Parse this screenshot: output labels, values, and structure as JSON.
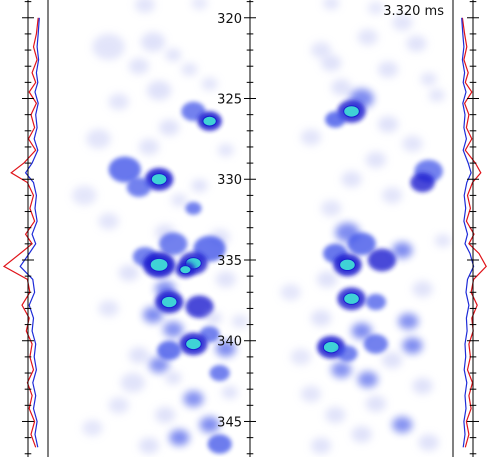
{
  "chart_data": {
    "type": "heatmap",
    "time_label": "3.320 ms",
    "axis": {
      "ylim": [
        318.9,
        347.2
      ],
      "major_ticks": [
        320,
        325,
        330,
        335,
        340,
        345
      ],
      "minor_step": 1,
      "tick_labels": [
        "320",
        "325",
        "330",
        "335",
        "340",
        "345"
      ]
    },
    "colors": {
      "blob_light": "#c9cdf6",
      "blob_mid": "#3b4fe8",
      "blob_dark": "#1a1fcf",
      "blob_hot": "#3fd2d6",
      "profile_red": "#e0141a",
      "profile_blue": "#1e2bd8",
      "axis": "#000000"
    },
    "profiles": {
      "left": {
        "red": [
          [
            320.0,
            0.05
          ],
          [
            321.0,
            0.1
          ],
          [
            321.8,
            0.18
          ],
          [
            322.6,
            0.08
          ],
          [
            323.4,
            0.22
          ],
          [
            324.0,
            0.12
          ],
          [
            324.6,
            0.3
          ],
          [
            325.3,
            0.1
          ],
          [
            326.0,
            0.25
          ],
          [
            326.8,
            0.15
          ],
          [
            327.5,
            0.32
          ],
          [
            328.2,
            0.12
          ],
          [
            329.0,
            0.45
          ],
          [
            329.6,
            0.8
          ],
          [
            330.2,
            0.35
          ],
          [
            331.0,
            0.18
          ],
          [
            331.8,
            0.28
          ],
          [
            332.6,
            0.15
          ],
          [
            333.4,
            0.4
          ],
          [
            334.0,
            0.22
          ],
          [
            334.6,
            0.55
          ],
          [
            335.4,
            1.0
          ],
          [
            336.2,
            0.35
          ],
          [
            337.0,
            0.28
          ],
          [
            337.8,
            0.5
          ],
          [
            338.6,
            0.3
          ],
          [
            339.4,
            0.38
          ],
          [
            340.2,
            0.22
          ],
          [
            341.0,
            0.28
          ],
          [
            341.8,
            0.18
          ],
          [
            342.6,
            0.35
          ],
          [
            343.4,
            0.22
          ],
          [
            344.2,
            0.3
          ],
          [
            345.0,
            0.15
          ],
          [
            345.8,
            0.25
          ],
          [
            346.6,
            0.12
          ]
        ],
        "blue": [
          [
            320.0,
            0.02
          ],
          [
            321.0,
            0.05
          ],
          [
            321.8,
            0.08
          ],
          [
            322.6,
            0.04
          ],
          [
            323.4,
            0.1
          ],
          [
            324.0,
            0.06
          ],
          [
            324.6,
            0.14
          ],
          [
            325.3,
            0.05
          ],
          [
            326.0,
            0.12
          ],
          [
            326.8,
            0.08
          ],
          [
            327.5,
            0.16
          ],
          [
            328.2,
            0.06
          ],
          [
            329.0,
            0.22
          ],
          [
            329.6,
            0.4
          ],
          [
            330.2,
            0.18
          ],
          [
            331.0,
            0.1
          ],
          [
            331.8,
            0.14
          ],
          [
            332.6,
            0.08
          ],
          [
            333.4,
            0.22
          ],
          [
            334.0,
            0.12
          ],
          [
            334.6,
            0.3
          ],
          [
            335.4,
            0.55
          ],
          [
            336.2,
            0.2
          ],
          [
            337.0,
            0.15
          ],
          [
            337.8,
            0.3
          ],
          [
            338.6,
            0.18
          ],
          [
            339.4,
            0.22
          ],
          [
            340.2,
            0.12
          ],
          [
            341.0,
            0.16
          ],
          [
            341.8,
            0.1
          ],
          [
            342.6,
            0.2
          ],
          [
            343.4,
            0.12
          ],
          [
            344.2,
            0.18
          ],
          [
            345.0,
            0.08
          ],
          [
            345.8,
            0.14
          ],
          [
            346.6,
            0.06
          ]
        ]
      },
      "right": {
        "red": [
          [
            320.0,
            0.04
          ],
          [
            321.0,
            0.1
          ],
          [
            321.8,
            0.16
          ],
          [
            322.6,
            0.08
          ],
          [
            323.4,
            0.2
          ],
          [
            324.0,
            0.12
          ],
          [
            324.6,
            0.3
          ],
          [
            325.3,
            0.1
          ],
          [
            326.0,
            0.22
          ],
          [
            326.8,
            0.15
          ],
          [
            327.5,
            0.3
          ],
          [
            328.2,
            0.12
          ],
          [
            329.0,
            0.4
          ],
          [
            329.6,
            0.55
          ],
          [
            330.2,
            0.32
          ],
          [
            331.0,
            0.18
          ],
          [
            331.8,
            0.26
          ],
          [
            332.6,
            0.15
          ],
          [
            333.4,
            0.36
          ],
          [
            334.0,
            0.22
          ],
          [
            334.6,
            0.5
          ],
          [
            335.4,
            0.7
          ],
          [
            336.2,
            0.35
          ],
          [
            337.0,
            0.28
          ],
          [
            337.8,
            0.45
          ],
          [
            338.6,
            0.3
          ],
          [
            339.4,
            0.34
          ],
          [
            340.2,
            0.22
          ],
          [
            341.0,
            0.26
          ],
          [
            341.8,
            0.18
          ],
          [
            342.6,
            0.32
          ],
          [
            343.4,
            0.22
          ],
          [
            344.2,
            0.28
          ],
          [
            345.0,
            0.15
          ],
          [
            345.8,
            0.22
          ],
          [
            346.6,
            0.12
          ]
        ],
        "blue": [
          [
            320.0,
            0.02
          ],
          [
            321.0,
            0.05
          ],
          [
            321.8,
            0.08
          ],
          [
            322.6,
            0.04
          ],
          [
            323.4,
            0.1
          ],
          [
            324.0,
            0.06
          ],
          [
            324.6,
            0.14
          ],
          [
            325.3,
            0.05
          ],
          [
            326.0,
            0.11
          ],
          [
            326.8,
            0.08
          ],
          [
            327.5,
            0.15
          ],
          [
            328.2,
            0.06
          ],
          [
            329.0,
            0.2
          ],
          [
            329.6,
            0.28
          ],
          [
            330.2,
            0.16
          ],
          [
            331.0,
            0.09
          ],
          [
            331.8,
            0.13
          ],
          [
            332.6,
            0.08
          ],
          [
            333.4,
            0.18
          ],
          [
            334.0,
            0.11
          ],
          [
            334.6,
            0.25
          ],
          [
            335.4,
            0.35
          ],
          [
            336.2,
            0.18
          ],
          [
            337.0,
            0.14
          ],
          [
            337.8,
            0.22
          ],
          [
            338.6,
            0.15
          ],
          [
            339.4,
            0.17
          ],
          [
            340.2,
            0.11
          ],
          [
            341.0,
            0.13
          ],
          [
            341.8,
            0.09
          ],
          [
            342.6,
            0.16
          ],
          [
            343.4,
            0.11
          ],
          [
            344.2,
            0.14
          ],
          [
            345.0,
            0.08
          ],
          [
            345.8,
            0.11
          ],
          [
            346.6,
            0.06
          ]
        ]
      }
    },
    "blobs": {
      "left": [
        [
          0.48,
          319.2,
          0.05,
          0.3
        ],
        [
          0.75,
          319.1,
          0.04,
          0.2
        ],
        [
          0.52,
          321.5,
          0.06,
          0.4
        ],
        [
          0.3,
          321.8,
          0.08,
          0.3
        ],
        [
          0.62,
          322.3,
          0.04,
          0.35
        ],
        [
          0.45,
          323.0,
          0.05,
          0.35
        ],
        [
          0.7,
          323.2,
          0.04,
          0.3
        ],
        [
          0.8,
          324.1,
          0.04,
          0.3
        ],
        [
          0.55,
          324.5,
          0.06,
          0.4
        ],
        [
          0.35,
          325.2,
          0.05,
          0.3
        ],
        [
          0.72,
          325.8,
          0.06,
          0.6
        ],
        [
          0.8,
          326.4,
          0.06,
          0.9
        ],
        [
          0.6,
          326.8,
          0.05,
          0.4
        ],
        [
          0.25,
          327.5,
          0.06,
          0.3
        ],
        [
          0.5,
          328.0,
          0.05,
          0.35
        ],
        [
          0.88,
          328.2,
          0.04,
          0.3
        ],
        [
          0.38,
          329.4,
          0.08,
          0.7
        ],
        [
          0.55,
          330.0,
          0.07,
          0.9
        ],
        [
          0.45,
          330.5,
          0.06,
          0.6
        ],
        [
          0.75,
          330.4,
          0.04,
          0.4
        ],
        [
          0.65,
          331.3,
          0.04,
          0.3
        ],
        [
          0.72,
          331.8,
          0.04,
          0.6
        ],
        [
          0.3,
          332.6,
          0.05,
          0.3
        ],
        [
          0.58,
          333.3,
          0.05,
          0.4
        ],
        [
          0.85,
          333.6,
          0.05,
          0.35
        ],
        [
          0.62,
          334.0,
          0.07,
          0.6
        ],
        [
          0.8,
          334.3,
          0.08,
          0.7
        ],
        [
          0.48,
          334.8,
          0.06,
          0.6
        ],
        [
          0.55,
          335.3,
          0.08,
          0.95
        ],
        [
          0.72,
          335.2,
          0.07,
          0.8
        ],
        [
          0.68,
          335.6,
          0.05,
          0.85
        ],
        [
          0.4,
          335.8,
          0.05,
          0.4
        ],
        [
          0.88,
          336.2,
          0.05,
          0.35
        ],
        [
          0.58,
          336.8,
          0.05,
          0.5
        ],
        [
          0.6,
          337.6,
          0.07,
          0.9
        ],
        [
          0.75,
          337.9,
          0.07,
          0.75
        ],
        [
          0.52,
          338.4,
          0.05,
          0.5
        ],
        [
          0.82,
          338.6,
          0.04,
          0.4
        ],
        [
          0.3,
          338.0,
          0.05,
          0.3
        ],
        [
          0.62,
          339.3,
          0.05,
          0.45
        ],
        [
          0.8,
          339.6,
          0.05,
          0.6
        ],
        [
          0.72,
          340.2,
          0.07,
          0.85
        ],
        [
          0.6,
          340.6,
          0.06,
          0.7
        ],
        [
          0.88,
          340.5,
          0.05,
          0.5
        ],
        [
          0.45,
          340.9,
          0.05,
          0.4
        ],
        [
          0.55,
          341.5,
          0.05,
          0.45
        ],
        [
          0.85,
          342.0,
          0.05,
          0.6
        ],
        [
          0.62,
          342.3,
          0.04,
          0.4
        ],
        [
          0.42,
          342.6,
          0.06,
          0.35
        ],
        [
          0.9,
          343.2,
          0.04,
          0.4
        ],
        [
          0.72,
          343.6,
          0.05,
          0.45
        ],
        [
          0.35,
          344.0,
          0.05,
          0.3
        ],
        [
          0.58,
          344.6,
          0.05,
          0.4
        ],
        [
          0.8,
          345.2,
          0.05,
          0.5
        ],
        [
          0.65,
          346.0,
          0.05,
          0.5
        ],
        [
          0.85,
          346.4,
          0.06,
          0.65
        ],
        [
          0.5,
          346.5,
          0.05,
          0.4
        ],
        [
          0.22,
          345.4,
          0.05,
          0.25
        ],
        [
          0.95,
          338.8,
          0.04,
          0.3
        ],
        [
          0.18,
          331.0,
          0.06,
          0.25
        ]
      ],
      "right": [
        [
          0.4,
          319.1,
          0.04,
          0.3
        ],
        [
          0.62,
          319.4,
          0.04,
          0.2
        ],
        [
          0.75,
          320.3,
          0.05,
          0.3
        ],
        [
          0.58,
          321.2,
          0.05,
          0.3
        ],
        [
          0.82,
          321.6,
          0.05,
          0.35
        ],
        [
          0.35,
          322.0,
          0.05,
          0.3
        ],
        [
          0.4,
          322.8,
          0.05,
          0.4
        ],
        [
          0.68,
          323.2,
          0.05,
          0.35
        ],
        [
          0.88,
          323.8,
          0.04,
          0.3
        ],
        [
          0.45,
          324.3,
          0.05,
          0.4
        ],
        [
          0.55,
          325.0,
          0.06,
          0.5
        ],
        [
          0.5,
          325.8,
          0.07,
          0.8
        ],
        [
          0.42,
          326.3,
          0.05,
          0.7
        ],
        [
          0.68,
          326.6,
          0.05,
          0.4
        ],
        [
          0.3,
          327.4,
          0.05,
          0.3
        ],
        [
          0.8,
          327.8,
          0.05,
          0.3
        ],
        [
          0.62,
          328.8,
          0.05,
          0.35
        ],
        [
          0.88,
          329.5,
          0.07,
          0.6
        ],
        [
          0.85,
          330.2,
          0.06,
          0.75
        ],
        [
          0.5,
          330.0,
          0.05,
          0.35
        ],
        [
          0.7,
          331.0,
          0.05,
          0.3
        ],
        [
          0.4,
          331.8,
          0.05,
          0.3
        ],
        [
          0.48,
          333.3,
          0.06,
          0.5
        ],
        [
          0.55,
          334.0,
          0.07,
          0.7
        ],
        [
          0.42,
          334.6,
          0.06,
          0.7
        ],
        [
          0.48,
          335.3,
          0.07,
          0.9
        ],
        [
          0.65,
          335.0,
          0.07,
          0.75
        ],
        [
          0.75,
          334.4,
          0.05,
          0.5
        ],
        [
          0.38,
          336.2,
          0.05,
          0.4
        ],
        [
          0.85,
          336.8,
          0.05,
          0.35
        ],
        [
          0.5,
          337.4,
          0.07,
          0.8
        ],
        [
          0.62,
          337.6,
          0.05,
          0.6
        ],
        [
          0.35,
          338.6,
          0.05,
          0.4
        ],
        [
          0.78,
          338.8,
          0.05,
          0.45
        ],
        [
          0.55,
          339.4,
          0.05,
          0.5
        ],
        [
          0.4,
          340.4,
          0.07,
          0.85
        ],
        [
          0.48,
          340.8,
          0.05,
          0.6
        ],
        [
          0.62,
          340.2,
          0.06,
          0.6
        ],
        [
          0.8,
          340.3,
          0.05,
          0.5
        ],
        [
          0.7,
          341.2,
          0.05,
          0.4
        ],
        [
          0.45,
          341.8,
          0.05,
          0.45
        ],
        [
          0.58,
          342.4,
          0.05,
          0.45
        ],
        [
          0.85,
          342.8,
          0.05,
          0.4
        ],
        [
          0.3,
          343.3,
          0.05,
          0.3
        ],
        [
          0.62,
          343.9,
          0.05,
          0.4
        ],
        [
          0.42,
          344.6,
          0.05,
          0.35
        ],
        [
          0.75,
          345.2,
          0.05,
          0.45
        ],
        [
          0.55,
          345.8,
          0.05,
          0.4
        ],
        [
          0.88,
          346.3,
          0.05,
          0.4
        ],
        [
          0.35,
          346.5,
          0.05,
          0.35
        ],
        [
          0.95,
          333.8,
          0.04,
          0.3
        ],
        [
          0.2,
          337.0,
          0.05,
          0.25
        ],
        [
          0.92,
          324.8,
          0.04,
          0.3
        ],
        [
          0.25,
          341.0,
          0.05,
          0.25
        ]
      ]
    }
  }
}
